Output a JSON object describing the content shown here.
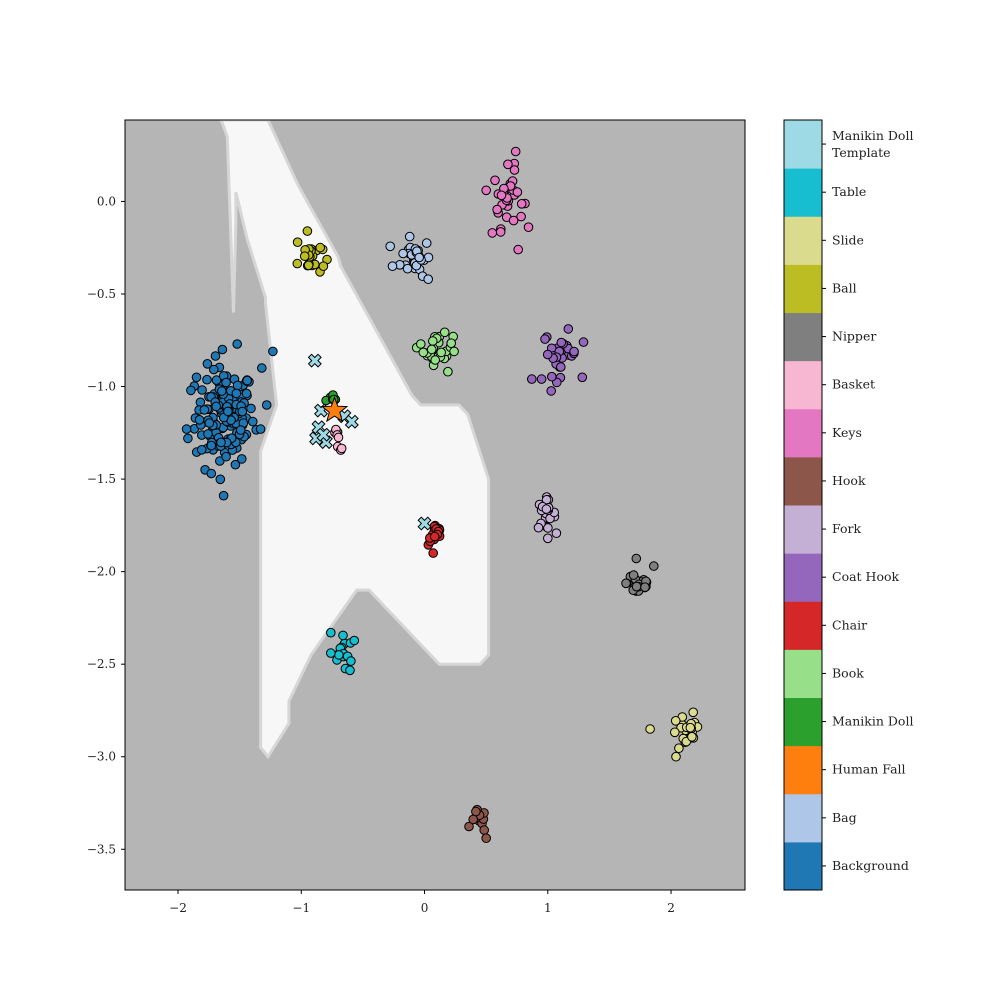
{
  "chart_data": {
    "type": "scatter",
    "title": "",
    "xlabel": "",
    "ylabel": "",
    "xlim": [
      -2.43,
      2.6
    ],
    "ylim": [
      -3.72,
      0.44
    ],
    "xticks": [
      "−2",
      "−1",
      "0",
      "1",
      "2"
    ],
    "yticks": [
      "0.0",
      "−0.5",
      "−1.0",
      "−1.5",
      "−2.0",
      "−2.5",
      "−3.0",
      "−3.5"
    ],
    "xtick_values": [
      -2,
      -1,
      0,
      1,
      2
    ],
    "ytick_values": [
      0.0,
      -0.5,
      -1.0,
      -1.5,
      -2.0,
      -2.5,
      -3.0,
      -3.5
    ],
    "grid": false,
    "legend": "colorbar-right",
    "colorbar": {
      "labels": [
        "Background",
        "Bag",
        "Human Fall",
        "Manikin Doll",
        "Book",
        "Chair",
        "Coat Hook",
        "Fork",
        "Hook",
        "Keys",
        "Basket",
        "Nipper",
        "Ball",
        "Slide",
        "Table",
        "Manikin Doll Template"
      ],
      "colors": [
        "#1f77b4",
        "#aec7e8",
        "#ff7f0e",
        "#2ca02c",
        "#98df8a",
        "#d62728",
        "#9467bd",
        "#c5b0d5",
        "#8c564b",
        "#e377c2",
        "#f7b6d2",
        "#7f7f7f",
        "#bcbd22",
        "#dbdb8d",
        "#17becf",
        "#9edae5"
      ]
    },
    "decision_region": {
      "background_color": "#b5b5b5",
      "highlight_color": "#f7f7f7",
      "boundary": [
        [
          -1.65,
          0.44
        ],
        [
          -1.27,
          0.44
        ],
        [
          -1.02,
          0.08
        ],
        [
          -0.7,
          -0.3
        ],
        [
          -0.68,
          -0.35
        ],
        [
          -0.1,
          -1.05
        ],
        [
          -0.03,
          -1.1
        ],
        [
          0.28,
          -1.1
        ],
        [
          0.35,
          -1.15
        ],
        [
          0.52,
          -1.5
        ],
        [
          0.52,
          -2.45
        ],
        [
          0.45,
          -2.5
        ],
        [
          0.12,
          -2.5
        ],
        [
          -0.45,
          -2.1
        ],
        [
          -0.55,
          -2.1
        ],
        [
          -0.92,
          -2.45
        ],
        [
          -1.1,
          -2.7
        ],
        [
          -1.1,
          -2.82
        ],
        [
          -1.27,
          -3.0
        ],
        [
          -1.33,
          -2.95
        ],
        [
          -1.33,
          -1.35
        ],
        [
          -1.2,
          -1.1
        ],
        [
          -1.29,
          -0.55
        ],
        [
          -1.29,
          -0.52
        ],
        [
          -1.44,
          -0.2
        ],
        [
          -1.53,
          0.05
        ],
        [
          -1.53,
          -0.1
        ],
        [
          -1.55,
          -0.6
        ],
        [
          -1.6,
          0.35
        ],
        [
          -1.65,
          0.44
        ]
      ]
    },
    "series": [
      {
        "name": "Background",
        "color": "#1f77b4",
        "cx": -1.62,
        "cy": -1.16,
        "sx": 0.12,
        "sy": 0.13,
        "n": 150,
        "points": [
          [
            -1.64,
            -0.8
          ],
          [
            -1.52,
            -0.77
          ],
          [
            -1.23,
            -0.81
          ],
          [
            -1.32,
            -0.9
          ],
          [
            -1.85,
            -0.95
          ],
          [
            -1.93,
            -1.23
          ],
          [
            -1.92,
            -1.28
          ],
          [
            -1.78,
            -1.45
          ],
          [
            -1.73,
            -1.47
          ],
          [
            -1.63,
            -1.59
          ],
          [
            -1.33,
            -1.23
          ],
          [
            -1.28,
            -1.1
          ]
        ]
      },
      {
        "name": "Bag",
        "color": "#aec7e8",
        "cx": -0.07,
        "cy": -0.3,
        "sx": 0.06,
        "sy": 0.05,
        "n": 30,
        "points": [
          [
            -0.26,
            -0.35
          ],
          [
            0.03,
            -0.42
          ],
          [
            -0.12,
            -0.19
          ]
        ]
      },
      {
        "name": "Keys",
        "color": "#e377c2",
        "cx": 0.68,
        "cy": 0.02,
        "sx": 0.06,
        "sy": 0.08,
        "n": 30,
        "points": [
          [
            0.74,
            0.27
          ],
          [
            0.5,
            0.06
          ],
          [
            0.55,
            -0.17
          ],
          [
            0.76,
            -0.26
          ],
          [
            0.73,
            0.17
          ]
        ]
      },
      {
        "name": "Ball",
        "color": "#bcbd22",
        "cx": -0.93,
        "cy": -0.3,
        "sx": 0.05,
        "sy": 0.05,
        "n": 22,
        "points": [
          [
            -1.03,
            -0.22
          ],
          [
            -0.95,
            -0.16
          ],
          [
            -0.82,
            -0.35
          ]
        ]
      },
      {
        "name": "Book",
        "color": "#98df8a",
        "cx": 0.11,
        "cy": -0.8,
        "sx": 0.06,
        "sy": 0.04,
        "n": 30,
        "points": [
          [
            -0.03,
            -0.77
          ],
          [
            0.24,
            -0.81
          ],
          [
            0.19,
            -0.92
          ]
        ]
      },
      {
        "name": "Coat Hook",
        "color": "#9467bd",
        "cx": 1.1,
        "cy": -0.82,
        "sx": 0.07,
        "sy": 0.06,
        "n": 30,
        "points": [
          [
            0.87,
            -0.96
          ],
          [
            0.95,
            -0.96
          ],
          [
            1.29,
            -0.76
          ],
          [
            1.28,
            -0.95
          ]
        ]
      },
      {
        "name": "Basket",
        "color": "#f7b6d2",
        "cx": -0.7,
        "cy": -1.29,
        "sx": 0.03,
        "sy": 0.03,
        "n": 8,
        "points": []
      },
      {
        "name": "Manikin Doll",
        "color": "#2ca02c",
        "cx": -0.75,
        "cy": -1.07,
        "sx": 0.03,
        "sy": 0.02,
        "n": 6,
        "points": []
      },
      {
        "name": "Fork",
        "color": "#c5b0d5",
        "cx": 0.98,
        "cy": -1.69,
        "sx": 0.04,
        "sy": 0.04,
        "n": 20,
        "points": [
          [
            1.0,
            -1.82
          ]
        ]
      },
      {
        "name": "Chair",
        "color": "#d62728",
        "cx": 0.09,
        "cy": -1.8,
        "sx": 0.03,
        "sy": 0.03,
        "n": 16,
        "points": [
          [
            0.07,
            -1.9
          ]
        ]
      },
      {
        "name": "Nipper",
        "color": "#7f7f7f",
        "cx": 1.74,
        "cy": -2.06,
        "sx": 0.05,
        "sy": 0.04,
        "n": 28,
        "points": [
          [
            1.86,
            -1.97
          ]
        ]
      },
      {
        "name": "Table",
        "color": "#17becf",
        "cx": -0.65,
        "cy": -2.45,
        "sx": 0.05,
        "sy": 0.05,
        "n": 16,
        "points": [
          [
            -0.76,
            -2.33
          ],
          [
            -0.76,
            -2.44
          ]
        ]
      },
      {
        "name": "Slide",
        "color": "#dbdb8d",
        "cx": 2.12,
        "cy": -2.88,
        "sx": 0.06,
        "sy": 0.05,
        "n": 22,
        "points": [
          [
            1.83,
            -2.85
          ],
          [
            2.04,
            -3.0
          ],
          [
            2.18,
            -2.76
          ]
        ]
      },
      {
        "name": "Hook",
        "color": "#8c564b",
        "cx": 0.44,
        "cy": -3.35,
        "sx": 0.03,
        "sy": 0.03,
        "n": 12,
        "points": [
          [
            0.5,
            -3.44
          ]
        ]
      }
    ],
    "template_markers": {
      "name": "Manikin Doll Template",
      "color": "#9edae5",
      "marker": "x",
      "points": [
        [
          -0.89,
          -0.86
        ],
        [
          -0.84,
          -1.13
        ],
        [
          -0.65,
          -1.16
        ],
        [
          -0.86,
          -1.22
        ],
        [
          -0.88,
          -1.28
        ],
        [
          -0.8,
          -1.3
        ],
        [
          -0.59,
          -1.19
        ],
        [
          -0.82,
          -1.26
        ],
        [
          0.0,
          -1.74
        ]
      ]
    },
    "human_fall_marker": {
      "name": "Human Fall",
      "color": "#ff7f0e",
      "marker": "star",
      "point": [
        -0.73,
        -1.13
      ]
    }
  }
}
